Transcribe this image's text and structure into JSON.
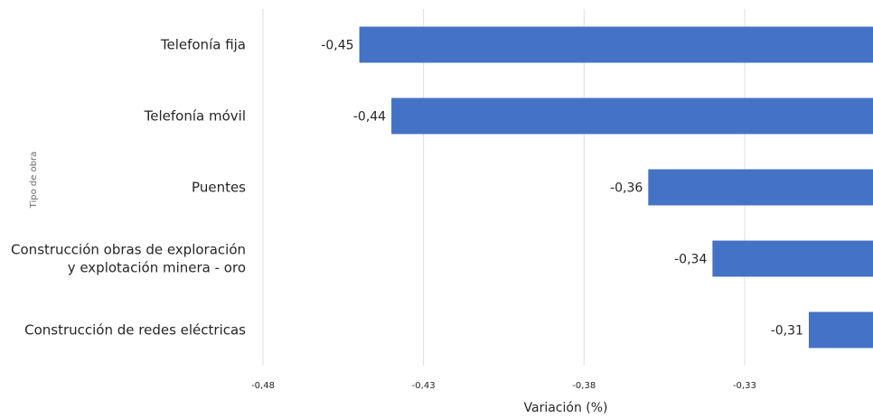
{
  "chart_data": {
    "type": "bar",
    "orientation": "horizontal",
    "xlabel": "Variación (%)",
    "ylabel": "Tipo de obra",
    "xlim": [
      -0.48,
      -0.29
    ],
    "x_ticks": [
      "-0,48",
      "-0,43",
      "-0,38",
      "-0,33"
    ],
    "x_tick_values": [
      -0.48,
      -0.43,
      -0.38,
      -0.33
    ],
    "grid": true,
    "bar_color": "#4472C4",
    "categories": [
      [
        "Telefonía fija"
      ],
      [
        "Telefonía móvil"
      ],
      [
        "Puentes"
      ],
      [
        "Construcción obras de exploración",
        "y explotación minera - oro"
      ],
      [
        "Construcción de redes eléctricas"
      ]
    ],
    "values": [
      -0.45,
      -0.44,
      -0.36,
      -0.34,
      -0.31
    ],
    "value_labels": [
      "-0,45",
      "-0,44",
      "-0,36",
      "-0,34",
      "-0,31"
    ]
  }
}
